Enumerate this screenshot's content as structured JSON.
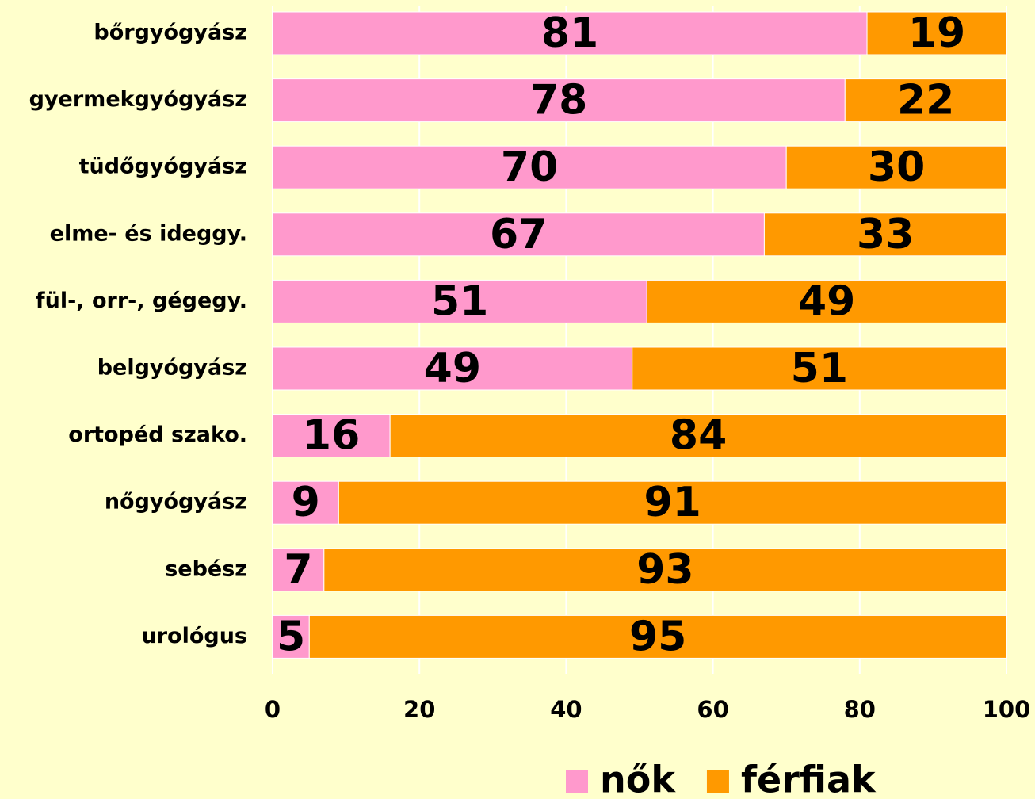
{
  "chart_data": {
    "type": "bar",
    "orientation": "horizontal",
    "stacked": true,
    "categories": [
      "bőrgyógyász",
      "gyermekgyógyász",
      "tüdőgyógyász",
      "elme- és ideggy.",
      "fül-, orr-, gégegy.",
      "belgyógyász",
      "ortopéd szako.",
      "nőgyógyász",
      "sebész",
      "urológus"
    ],
    "series": [
      {
        "name": "nők",
        "color": "#ff99cc",
        "values": [
          81,
          78,
          70,
          67,
          51,
          49,
          16,
          9,
          7,
          5
        ]
      },
      {
        "name": "férfiak",
        "color": "#ff9900",
        "values": [
          19,
          22,
          30,
          33,
          49,
          51,
          84,
          91,
          93,
          95
        ]
      }
    ],
    "xlim": [
      0,
      100
    ],
    "xticks": [
      0,
      20,
      40,
      60,
      80,
      100
    ],
    "grid": true,
    "legend": "bottom"
  }
}
